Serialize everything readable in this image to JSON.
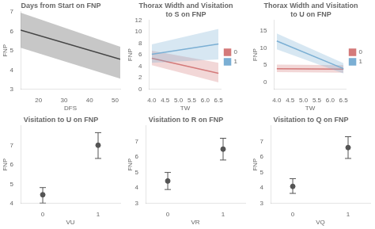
{
  "chart_data": [
    {
      "type": "line",
      "title": "Days from Start on FNP",
      "xlabel": "DFS",
      "ylabel": "FNP",
      "xlim": [
        13,
        52
      ],
      "ylim": [
        3,
        7
      ],
      "xticks": [
        20,
        30,
        40,
        50
      ],
      "yticks": [
        3,
        4,
        5,
        6,
        7
      ],
      "grid": false,
      "x": [
        13,
        52
      ],
      "series": [
        {
          "color": "#444444",
          "values": [
            6.05,
            4.55
          ],
          "ci_top": [
            6.95,
            5.2
          ],
          "ci_bot": [
            5.15,
            3.55
          ]
        }
      ]
    },
    {
      "type": "line",
      "title": "Thorax Width and Visitation\nto S on FNP",
      "xlabel": "TW",
      "ylabel": "FNP",
      "xlim": [
        3.9,
        6.6
      ],
      "ylim": [
        0,
        12
      ],
      "xticks": [
        {
          "value": 4.0,
          "label": "4.0"
        },
        4.5,
        {
          "value": 5.0,
          "label": "5.0"
        },
        5.5,
        {
          "value": 6.0,
          "label": "6.0"
        },
        6.5
      ],
      "yticks": [
        0,
        2,
        4,
        6,
        8,
        10,
        12
      ],
      "grid": false,
      "legend": "right",
      "x": [
        4.0,
        6.5
      ],
      "series": [
        {
          "name": "1",
          "color": "#7bafd4",
          "values": [
            6.1,
            7.9
          ],
          "ci_top": [
            7.8,
            10.5
          ],
          "ci_bot": [
            4.6,
            5.2
          ]
        },
        {
          "name": "0",
          "color": "#d47a7a",
          "values": [
            5.4,
            2.8
          ],
          "ci_top": [
            6.7,
            4.6
          ],
          "ci_bot": [
            4.2,
            1.2
          ]
        }
      ]
    },
    {
      "type": "line",
      "title": "Thorax Width and Visitation\nto U on FNP",
      "xlabel": "TW",
      "ylabel": "FNP",
      "xlim": [
        3.9,
        6.6
      ],
      "ylim": [
        -2,
        18
      ],
      "xticks": [
        {
          "value": 4.0,
          "label": "4.0"
        },
        4.5,
        {
          "value": 5.0,
          "label": "5.0"
        },
        5.5,
        {
          "value": 6.0,
          "label": "6.0"
        },
        6.5
      ],
      "yticks": [
        0,
        5,
        10,
        15
      ],
      "grid": false,
      "legend": "right",
      "x": [
        4.0,
        6.5
      ],
      "series": [
        {
          "name": "1",
          "color": "#7bafd4",
          "values": [
            12.0,
            4.0
          ],
          "ci_top": [
            14.2,
            5.6
          ],
          "ci_bot": [
            9.6,
            2.6
          ]
        },
        {
          "name": "0",
          "color": "#d47a7a",
          "values": [
            4.0,
            3.85
          ],
          "ci_top": [
            5.2,
            5.0
          ],
          "ci_bot": [
            3.0,
            2.8
          ]
        }
      ]
    },
    {
      "type": "scatter",
      "title": "Visitation to U on FNP",
      "xlabel": "VU",
      "ylabel": "FNP",
      "xlim": [
        -0.4,
        1.4
      ],
      "ylim": [
        4,
        8
      ],
      "xticks": [
        0,
        1
      ],
      "yticks": [
        4,
        5,
        6,
        7
      ],
      "grid": false,
      "color": "#555555",
      "x": [
        0,
        1
      ],
      "values": [
        4.45,
        7.0
      ],
      "ci_top": [
        4.82,
        7.65
      ],
      "ci_bot": [
        4.02,
        6.32
      ]
    },
    {
      "type": "scatter",
      "title": "Visitation to R on FNP",
      "xlabel": "VR",
      "ylabel": "FNP",
      "xlim": [
        -0.4,
        1.4
      ],
      "ylim": [
        3,
        8
      ],
      "xticks": [
        0,
        1
      ],
      "yticks": [
        3,
        4,
        5,
        6,
        7
      ],
      "grid": false,
      "color": "#555555",
      "x": [
        0,
        1
      ],
      "values": [
        4.45,
        6.5
      ],
      "ci_top": [
        5.0,
        7.2
      ],
      "ci_bot": [
        3.9,
        5.8
      ]
    },
    {
      "type": "scatter",
      "title": "Visitation to Q on FNP",
      "xlabel": "VQ",
      "ylabel": "FNP",
      "xlim": [
        -0.4,
        1.4
      ],
      "ylim": [
        3,
        8
      ],
      "xticks": [
        0,
        1
      ],
      "yticks": [
        3,
        4,
        5,
        6,
        7
      ],
      "grid": false,
      "color": "#555555",
      "x": [
        0,
        1
      ],
      "values": [
        4.1,
        6.6
      ],
      "ci_top": [
        4.6,
        7.3
      ],
      "ci_bot": [
        3.65,
        5.9
      ]
    }
  ]
}
